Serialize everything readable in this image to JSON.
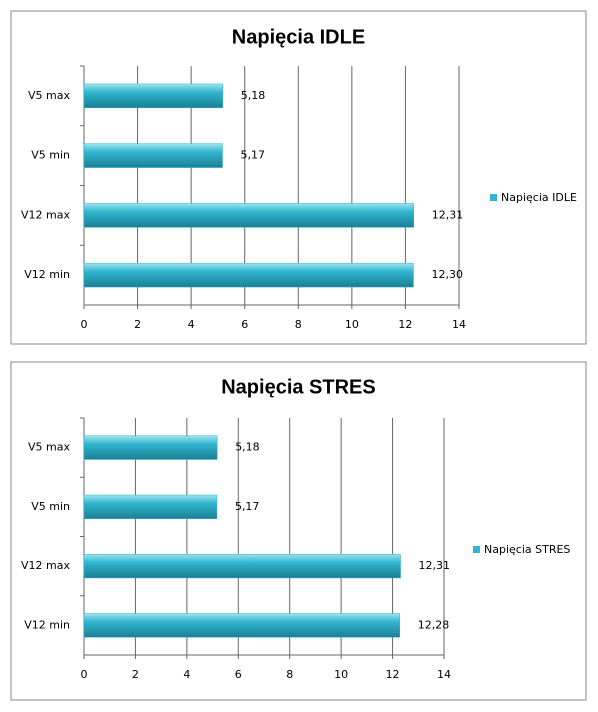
{
  "chart_data": [
    {
      "type": "bar",
      "orientation": "horizontal",
      "title": "Napięcia IDLE",
      "categories": [
        "V5 max",
        "V5 min",
        "V12 max",
        "V12 min"
      ],
      "series": [
        {
          "name": "Napięcia IDLE",
          "color": "#31b5cf",
          "values": [
            5.18,
            5.17,
            12.31,
            12.3
          ],
          "value_labels": [
            "5,18",
            "5,17",
            "12,31",
            "12,30"
          ]
        }
      ],
      "xlim": [
        0,
        14
      ],
      "xticks": [
        0,
        2,
        4,
        6,
        8,
        10,
        12,
        14
      ],
      "grid": true,
      "legend": "right"
    },
    {
      "type": "bar",
      "orientation": "horizontal",
      "title": "Napięcia STRES",
      "categories": [
        "V5 max",
        "V5 min",
        "V12 max",
        "V12 min"
      ],
      "series": [
        {
          "name": "Napięcia STRES",
          "color": "#31b5cf",
          "values": [
            5.18,
            5.17,
            12.31,
            12.28
          ],
          "value_labels": [
            "5,18",
            "5,17",
            "12,31",
            "12,28"
          ]
        }
      ],
      "xlim": [
        0,
        14
      ],
      "xticks": [
        0,
        2,
        4,
        6,
        8,
        10,
        12,
        14
      ],
      "grid": true,
      "legend": "right"
    }
  ]
}
